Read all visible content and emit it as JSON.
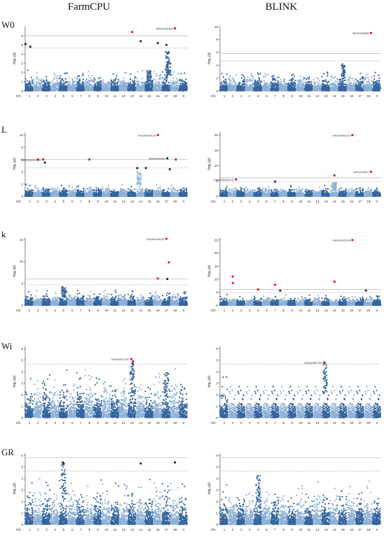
{
  "col_titles": [
    "FarmCPU",
    "BLINK"
  ],
  "row_labels": [
    "W0",
    "L",
    "k",
    "Wi",
    "GR"
  ],
  "y_axis_label": "-log₁₀(p)",
  "chr_axis_label": "Chr",
  "chromosomes": [
    "1",
    "2",
    "3",
    "4",
    "5",
    "6",
    "7",
    "8",
    "9",
    "10",
    "11",
    "12",
    "13",
    "14",
    "15",
    "16",
    "17",
    "18",
    "X"
  ],
  "colors": {
    "point_dark": "#35659e",
    "point_light": "#8fb0d6",
    "highlight": "#e8101c",
    "threshold_solid": "#b5b5b5",
    "threshold_dashed": "#b5b5b5"
  },
  "chart_data": [
    {
      "type": "scatter",
      "panel": "W0-FarmCPU",
      "ylim": [
        0,
        7
      ],
      "yticks": [
        0,
        1,
        2,
        3,
        4,
        5,
        6
      ],
      "thresholds": [
        6.0,
        4.65
      ],
      "base_height": 1.8,
      "peaks": [
        {
          "chr": 15,
          "pos": 0.5,
          "y": 2.2
        },
        {
          "chr": 17,
          "pos": 0.6,
          "y": 4.4
        },
        {
          "chr": 17,
          "pos": 0.75,
          "y": 3.3
        }
      ],
      "highlights": [
        {
          "chr": 1,
          "pos": 0.05,
          "y": 5.1,
          "color": "dark"
        },
        {
          "chr": 1,
          "pos": 0.6,
          "y": 4.8,
          "color": "dark"
        },
        {
          "chr": 13,
          "pos": 0.5,
          "y": 6.4,
          "color": "red"
        },
        {
          "chr": 14,
          "pos": 0.5,
          "y": 5.4,
          "color": "dark"
        },
        {
          "chr": 16,
          "pos": 0.5,
          "y": 5.2,
          "color": "dark"
        },
        {
          "chr": 17,
          "pos": 0.5,
          "y": 5.0,
          "color": "dark"
        },
        {
          "chr": 18,
          "pos": 0.5,
          "y": 6.8,
          "color": "red",
          "label": "INRA0038389"
        }
      ]
    },
    {
      "type": "scatter",
      "panel": "W0-BLINK",
      "ylim": [
        0,
        10
      ],
      "yticks": [
        0,
        2,
        4,
        6,
        8,
        10
      ],
      "thresholds": [
        5.8,
        4.65
      ],
      "base_height": 2.5,
      "peaks": [
        {
          "chr": 15,
          "pos": 0.5,
          "y": 4.2
        }
      ],
      "highlights": [
        {
          "chr": 18,
          "pos": 0.8,
          "y": 9.0,
          "color": "red",
          "label": "INRA0038389"
        }
      ]
    },
    {
      "type": "scatter",
      "panel": "L-FarmCPU",
      "ylim": [
        0,
        10.5
      ],
      "yticks": [
        0,
        2,
        4,
        6,
        8,
        10
      ],
      "thresholds": [
        6.0,
        4.65
      ],
      "base_height": 1.5,
      "peaks": [
        {
          "chr": 14,
          "pos": 0.3,
          "y": 4.0
        }
      ],
      "highlights": [
        {
          "chr": 2,
          "pos": 0.5,
          "y": 6.0,
          "color": "red"
        },
        {
          "chr": 3,
          "pos": 0.1,
          "y": 6.0,
          "color": "red",
          "label": "OAR2000000141"
        },
        {
          "chr": 3,
          "pos": 0.3,
          "y": 5.5,
          "color": "dark"
        },
        {
          "chr": 8,
          "pos": 0.5,
          "y": 6.0,
          "color": "red"
        },
        {
          "chr": 14,
          "pos": 0.1,
          "y": 4.6,
          "color": "dark"
        },
        {
          "chr": 15,
          "pos": 0.1,
          "y": 4.6,
          "color": "dark"
        },
        {
          "chr": 16,
          "pos": 0.5,
          "y": 10.0,
          "color": "red",
          "label": "HSGA0045134"
        },
        {
          "chr": 17,
          "pos": 0.6,
          "y": 6.2,
          "color": "dark",
          "label": "INRA0036480"
        },
        {
          "chr": 17,
          "pos": 0.9,
          "y": 4.4,
          "color": "dark"
        },
        {
          "chr": 18,
          "pos": 0.6,
          "y": 6.0,
          "color": "red"
        }
      ]
    },
    {
      "type": "scatter",
      "panel": "L-BLINK",
      "ylim": [
        0,
        21
      ],
      "yticks": [
        0,
        5,
        10,
        15,
        20
      ],
      "thresholds": [
        6.0,
        4.65
      ],
      "base_height": 2.8,
      "peaks": [
        {
          "chr": 14,
          "pos": 0.5,
          "y": 4.4
        }
      ],
      "highlights": [
        {
          "chr": 2,
          "pos": 0.9,
          "y": 5.5,
          "color": "red",
          "label": "OAR2000000141"
        },
        {
          "chr": 7,
          "pos": 0.5,
          "y": 4.8,
          "color": "dark"
        },
        {
          "chr": 14,
          "pos": 0.5,
          "y": 6.8,
          "color": "red"
        },
        {
          "chr": 16,
          "pos": 0.6,
          "y": 20.0,
          "color": "red",
          "label": "HSGA0045134"
        },
        {
          "chr": 18,
          "pos": 0.8,
          "y": 8.0,
          "color": "red",
          "label": "HFNOR5997"
        }
      ]
    },
    {
      "type": "scatter",
      "panel": "k-FarmCPU",
      "ylim": [
        0,
        15.5
      ],
      "yticks": [
        0,
        5,
        10,
        15
      ],
      "thresholds": [
        6.0,
        4.65
      ],
      "base_height": 2.8,
      "peaks": [
        {
          "chr": 5,
          "pos": 0.5,
          "y": 4.2
        }
      ],
      "highlights": [
        {
          "chr": 16,
          "pos": 0.5,
          "y": 6.1,
          "color": "red"
        },
        {
          "chr": 17,
          "pos": 0.5,
          "y": 15.2,
          "color": "red",
          "label": "HSGA0045134"
        },
        {
          "chr": 17,
          "pos": 0.6,
          "y": 6.0,
          "color": "dark"
        },
        {
          "chr": 17,
          "pos": 0.8,
          "y": 9.8,
          "color": "red"
        }
      ]
    },
    {
      "type": "scatter",
      "panel": "k-BLINK",
      "ylim": [
        0,
        26
      ],
      "yticks": [
        0,
        5,
        10,
        15,
        20,
        25
      ],
      "thresholds": [
        6.0,
        4.65
      ],
      "base_height": 3.2,
      "peaks": [],
      "highlights": [
        {
          "chr": 2,
          "pos": 0.5,
          "y": 11.0,
          "color": "red"
        },
        {
          "chr": 2,
          "pos": 0.55,
          "y": 8.5,
          "color": "red"
        },
        {
          "chr": 5,
          "pos": 0.5,
          "y": 6.0,
          "color": "red"
        },
        {
          "chr": 7,
          "pos": 0.5,
          "y": 7.8,
          "color": "red"
        },
        {
          "chr": 8,
          "pos": 0.1,
          "y": 5.6,
          "color": "dark"
        },
        {
          "chr": 14,
          "pos": 0.5,
          "y": 9.0,
          "color": "red"
        },
        {
          "chr": 16,
          "pos": 0.6,
          "y": 25.0,
          "color": "red",
          "label": "HSGA0045134"
        },
        {
          "chr": 18,
          "pos": 0.2,
          "y": 5.6,
          "color": "dark"
        }
      ]
    },
    {
      "type": "scatter",
      "panel": "Wi-FarmCPU",
      "ylim": [
        0,
        6.2
      ],
      "yticks": [
        0,
        1,
        2,
        3,
        4,
        5,
        6
      ],
      "thresholds": [
        4.65
      ],
      "base_height": 3.3,
      "peaks": [
        {
          "chr": 13,
          "pos": 0.5,
          "y": 4.6
        },
        {
          "chr": 17,
          "pos": 0.5,
          "y": 4.0
        }
      ],
      "highlights": [
        {
          "chr": 13,
          "pos": 0.4,
          "y": 5.1,
          "color": "red",
          "label": "HSGA0007757"
        },
        {
          "chr": 13,
          "pos": 0.6,
          "y": 4.9,
          "color": "red"
        },
        {
          "chr": 13,
          "pos": 0.55,
          "y": 4.7,
          "color": "dark"
        }
      ]
    },
    {
      "type": "scatter",
      "panel": "Wi-BLINK",
      "ylim": [
        0,
        6.2
      ],
      "yticks": [
        0,
        1,
        2,
        3,
        4,
        5,
        6
      ],
      "thresholds": [
        4.65
      ],
      "base_height": 3.4,
      "peaks": [
        {
          "chr": 13,
          "pos": 0.4,
          "y": 4.7
        }
      ],
      "highlights": [
        {
          "chr": 13,
          "pos": 0.3,
          "y": 4.8,
          "color": "red",
          "label": "HSGA0007757"
        }
      ]
    },
    {
      "type": "scatter",
      "panel": "GR-FarmCPU",
      "ylim": [
        0,
        6.2
      ],
      "yticks": [
        0,
        1,
        2,
        3,
        4,
        5,
        6
      ],
      "thresholds": [
        5.8,
        4.65
      ],
      "base_height": 3.1,
      "peaks": [
        {
          "chr": 5,
          "pos": 0.5,
          "y": 5.2
        }
      ],
      "highlights": [
        {
          "chr": 5,
          "pos": 0.4,
          "y": 5.4,
          "color": "dark"
        },
        {
          "chr": 5,
          "pos": 0.5,
          "y": 5.3,
          "color": "dark"
        },
        {
          "chr": 14,
          "pos": 0.5,
          "y": 5.3,
          "color": "dark"
        },
        {
          "chr": 18,
          "pos": 0.5,
          "y": 5.4,
          "color": "dark"
        }
      ]
    },
    {
      "type": "scatter",
      "panel": "GR-BLINK",
      "ylim": [
        0,
        6.2
      ],
      "yticks": [
        0,
        1,
        2,
        3,
        4,
        5,
        6
      ],
      "thresholds": [
        5.8,
        4.65
      ],
      "base_height": 2.9,
      "peaks": [
        {
          "chr": 5,
          "pos": 0.5,
          "y": 4.3
        }
      ],
      "highlights": []
    }
  ]
}
